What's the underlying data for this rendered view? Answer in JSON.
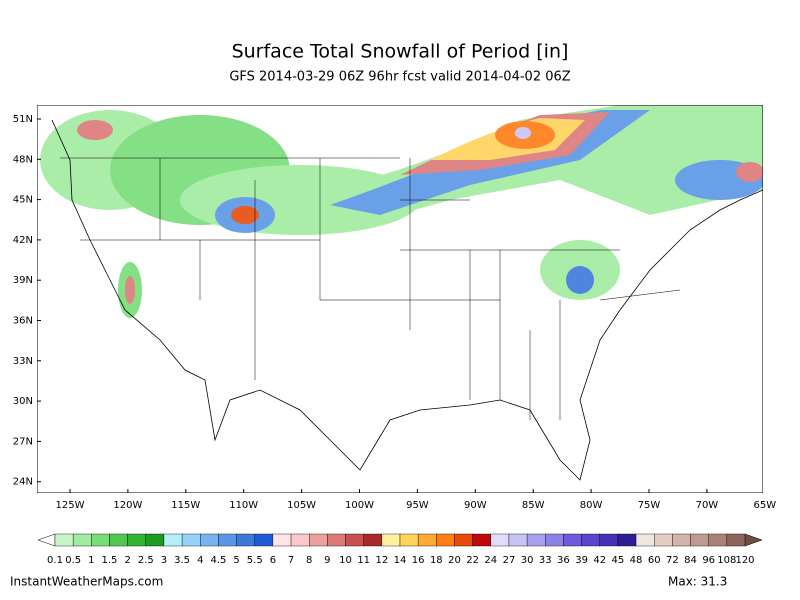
{
  "header": {
    "title": "Surface Total Snowfall of Period [in]",
    "subtitle": "GFS 2014-03-29 06Z 96hr fcst valid 2014-04-02 06Z"
  },
  "axes": {
    "lat_labels": [
      "51N",
      "48N",
      "45N",
      "42N",
      "39N",
      "36N",
      "33N",
      "30N",
      "27N",
      "24N"
    ],
    "lon_labels": [
      "125W",
      "120W",
      "115W",
      "110W",
      "105W",
      "100W",
      "95W",
      "90W",
      "85W",
      "80W",
      "75W",
      "70W",
      "65W"
    ]
  },
  "colorbar": {
    "labels": [
      "0.1",
      "0.5",
      "1",
      "1.5",
      "2",
      "2.5",
      "3",
      "3.5",
      "4",
      "4.5",
      "5",
      "5.5",
      "6",
      "7",
      "8",
      "9",
      "10",
      "11",
      "12",
      "14",
      "16",
      "18",
      "20",
      "22",
      "24",
      "27",
      "30",
      "33",
      "36",
      "39",
      "42",
      "45",
      "48",
      "60",
      "72",
      "84",
      "96",
      "108",
      "120"
    ],
    "colors": [
      "#c8f5c8",
      "#a0eca0",
      "#78dc78",
      "#50c850",
      "#32b432",
      "#1e9a1e",
      "#b4f0fa",
      "#96d2fa",
      "#78b4f0",
      "#5a96e6",
      "#3c78dc",
      "#1e5ad2",
      "#ffe6e6",
      "#fac8c8",
      "#eba0a0",
      "#dc7878",
      "#c85050",
      "#aa2828",
      "#fff0a0",
      "#ffd25a",
      "#ffaa32",
      "#ff7d14",
      "#e64b0a",
      "#be0a0a",
      "#e1dcfa",
      "#c8c3f5",
      "#aaa0f0",
      "#8c82e6",
      "#6e5adc",
      "#5a46c8",
      "#4632b4",
      "#2d1e96",
      "#f0e6e0",
      "#e6cdc3",
      "#d2b4aa",
      "#be9b91",
      "#aa8278",
      "#8c645a"
    ]
  },
  "footer": {
    "source": "InstantWeatherMaps.com",
    "max": "Max:  31.3"
  }
}
